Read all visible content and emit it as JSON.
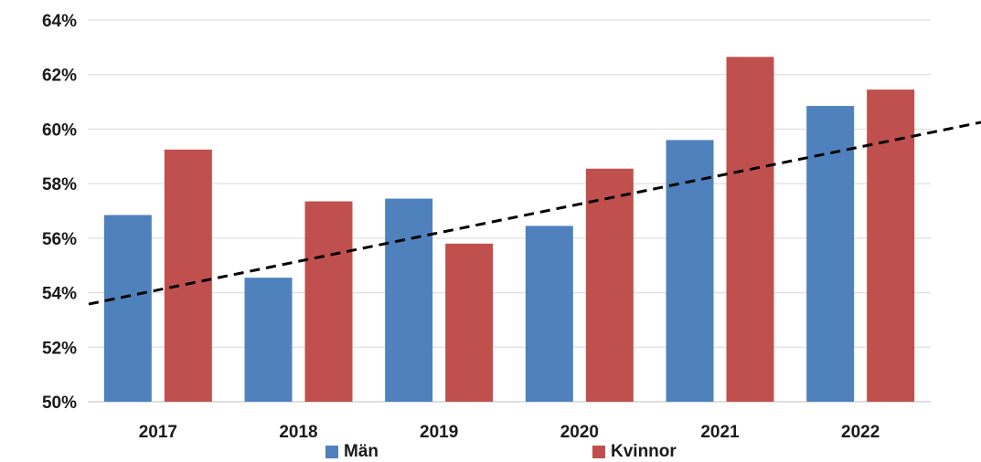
{
  "chart_data": {
    "type": "bar",
    "title": "",
    "xlabel": "",
    "ylabel": "",
    "categories": [
      "2017",
      "2018",
      "2019",
      "2020",
      "2021",
      "2022"
    ],
    "series": [
      {
        "name": "Män",
        "color": "#4f81bd",
        "values": [
          56.85,
          54.55,
          57.45,
          56.45,
          59.6,
          60.85
        ]
      },
      {
        "name": "Kvinnor",
        "color": "#c0504d",
        "values": [
          59.25,
          57.35,
          55.8,
          58.55,
          62.65,
          61.45
        ]
      }
    ],
    "ylim": [
      50,
      64
    ],
    "yticks": [
      50,
      52,
      54,
      56,
      58,
      60,
      62,
      64
    ],
    "ytick_labels": [
      "50%",
      "52%",
      "54%",
      "56%",
      "58%",
      "60%",
      "62%",
      "64%"
    ],
    "grid": true,
    "legend_position": "bottom",
    "trendline": {
      "style": "dashed",
      "color": "#000000",
      "start_value": 54.1,
      "slope_per_category": 1.05
    }
  }
}
